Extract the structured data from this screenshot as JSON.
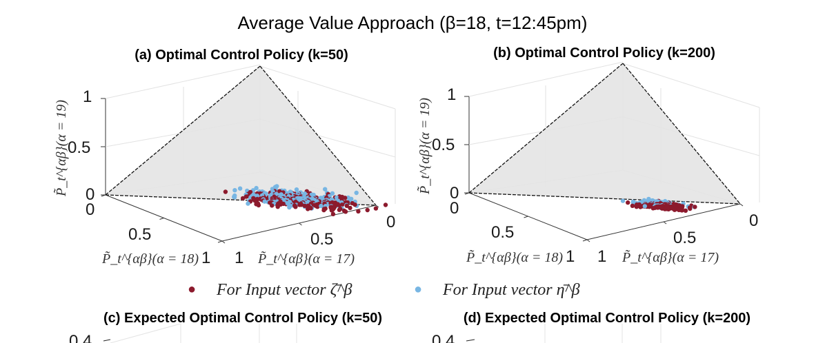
{
  "figure": {
    "title": "Average Value Approach (β=18, t=12:45pm)"
  },
  "legend": {
    "items": [
      {
        "marker": "●",
        "label": "For Input vector ζ̄^β",
        "color": "#8c1a2d"
      },
      {
        "marker": "●",
        "label": "For Input vector η̄^β",
        "color": "#78b6e3"
      }
    ]
  },
  "chart_data": [
    {
      "id": "a",
      "type": "scatter",
      "title": "(a) Optimal Control Policy (k=50)",
      "zlabel": "P̃_t^{αβ}(α = 19)",
      "xlabel": "P̃_t^{αβ}(α = 18)",
      "ylabel": "P̃_t^{αβ}(α = 17)",
      "z_ticks": [
        "1",
        "0.5",
        "0"
      ],
      "x_ticks": [
        "0",
        "0.5",
        "1"
      ],
      "y_ticks": [
        "1",
        "0.5",
        "0"
      ],
      "xlim": [
        0,
        1
      ],
      "ylim": [
        0,
        1
      ],
      "zlim": [
        0,
        1
      ],
      "series": [
        {
          "name": "For Input vector ζ̄^β",
          "color": "#8c1a2d",
          "centroid": [
            0.28,
            0.6,
            0.12
          ],
          "spread": [
            0.14,
            0.18,
            0.07
          ],
          "count": 240
        },
        {
          "name": "For Input vector η̄^β",
          "color": "#78b6e3",
          "centroid": [
            0.3,
            0.58,
            0.15
          ],
          "spread": [
            0.15,
            0.18,
            0.08
          ],
          "count": 240
        }
      ]
    },
    {
      "id": "b",
      "type": "scatter",
      "title": "(b) Optimal Control Policy (k=200)",
      "zlabel": "P̃_t^{αβ}(α = 19)",
      "xlabel": "P̃_t^{αβ}(α = 18)",
      "ylabel": "P̃_t^{αβ}(α = 17)",
      "z_ticks": [
        "1",
        "0.5",
        "0"
      ],
      "x_ticks": [
        "0",
        "0.5",
        "1"
      ],
      "y_ticks": [
        "1",
        "0.5",
        "0"
      ],
      "xlim": [
        0,
        1
      ],
      "ylim": [
        0,
        1
      ],
      "zlim": [
        0,
        1
      ],
      "series": [
        {
          "name": "For Input vector ζ̄^β",
          "color": "#8c1a2d",
          "centroid": [
            0.3,
            0.58,
            0.07
          ],
          "spread": [
            0.06,
            0.08,
            0.03
          ],
          "count": 200
        },
        {
          "name": "For Input vector η̄^β",
          "color": "#78b6e3",
          "centroid": [
            0.3,
            0.56,
            0.09
          ],
          "spread": [
            0.06,
            0.08,
            0.03
          ],
          "count": 200
        }
      ]
    },
    {
      "id": "c",
      "type": "line",
      "title": "(c) Expected Optimal Control Policy (k=50)",
      "y_ticks": [
        "0.4"
      ],
      "series": []
    },
    {
      "id": "d",
      "type": "line",
      "title": "(d) Expected Optimal Control Policy (k=200)",
      "y_ticks": [
        "0.4"
      ],
      "series": []
    }
  ]
}
